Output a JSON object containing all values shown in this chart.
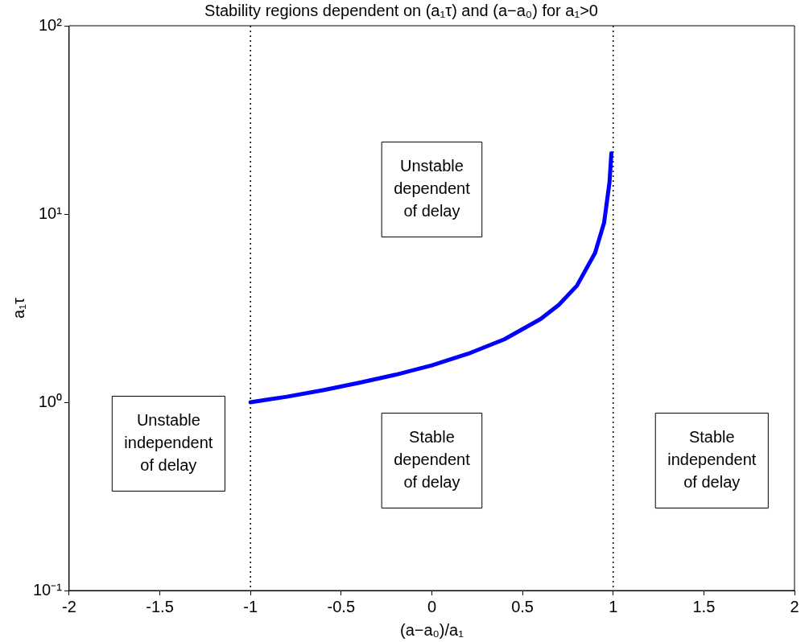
{
  "chart_data": {
    "type": "line",
    "title": "Stability regions dependent on (a₁τ) and (a−a₀) for a₁>0",
    "xlabel": "(a−a₀)/a₁",
    "ylabel": "a₁τ",
    "x": [
      -1,
      -0.9,
      -0.8,
      -0.6,
      -0.4,
      -0.2,
      0,
      0.2,
      0.4,
      0.6,
      0.7,
      0.8,
      0.9,
      0.95,
      0.98,
      0.99
    ],
    "series": [
      {
        "color": "#0000ff",
        "values": [
          1,
          1.035,
          1.07,
          1.16,
          1.27,
          1.4,
          1.57,
          1.81,
          2.16,
          2.77,
          3.29,
          4.16,
          6.2,
          9.0,
          14.8,
          21
        ]
      }
    ],
    "xlim": [
      -2,
      2
    ],
    "xticks": [
      -2,
      -1.5,
      -1,
      -0.5,
      0,
      0.5,
      1,
      1.5,
      2
    ],
    "ylim": [
      0.1,
      100
    ],
    "yticks": [
      {
        "value": 0.1,
        "label": "10⁻¹"
      },
      {
        "value": 1,
        "label": "10⁰"
      },
      {
        "value": 10,
        "label": "10¹"
      },
      {
        "value": 100,
        "label": "10²"
      }
    ],
    "log": "y",
    "grid": false,
    "legend": false,
    "marker": "none",
    "line_style": "solid",
    "ref_lines": [
      {
        "axis": "x",
        "value": -1,
        "color": "#000000",
        "line_style": "dotted"
      },
      {
        "axis": "x",
        "value": 1,
        "color": "#000000",
        "line_style": "dotted"
      }
    ],
    "annotations": [
      "Unstable\nindependent\nof delay",
      "Unstable\ndependent\nof delay",
      "Stable\ndependent\nof delay",
      "Stable\nindependent\nof delay"
    ]
  }
}
